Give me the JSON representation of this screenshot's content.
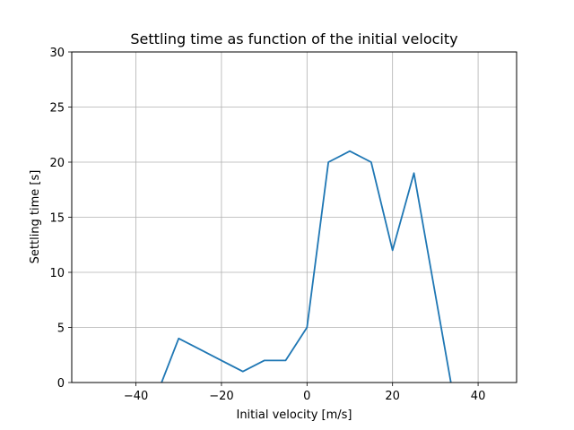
{
  "chart_data": {
    "type": "line",
    "title": "Settling time as function of the initial velocity",
    "xlabel": "Initial velocity [m/s]",
    "ylabel": "Settling time [s]",
    "xlim": [
      -55,
      49
    ],
    "ylim": [
      0,
      30
    ],
    "xticks": [
      -40,
      -20,
      0,
      20,
      40
    ],
    "xtick_labels": [
      "−40",
      "−20",
      "0",
      "20",
      "40"
    ],
    "yticks": [
      0,
      5,
      10,
      15,
      20,
      25,
      30
    ],
    "ytick_labels": [
      "0",
      "5",
      "10",
      "15",
      "20",
      "25",
      "30"
    ],
    "grid": true,
    "series": [
      {
        "color": "#1f77b4",
        "x": [
          -35,
          -30,
          -25,
          -20,
          -15,
          -10,
          -5,
          0,
          5,
          10,
          15,
          20,
          25,
          30,
          35
        ],
        "y": [
          -1,
          4,
          3,
          2,
          1,
          2,
          2,
          5,
          20,
          21,
          20,
          12,
          19,
          8,
          -3
        ]
      }
    ]
  }
}
